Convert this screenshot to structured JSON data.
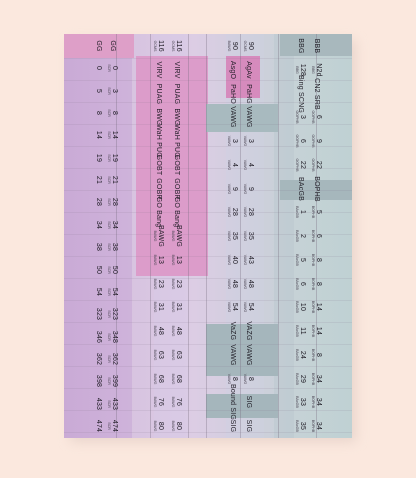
{
  "columns": [
    {
      "id": "c1",
      "cells": [
        {
          "v": "GG",
          "s": ""
        },
        {
          "v": "0",
          "s": ""
        },
        {
          "v": "5",
          "s": ""
        },
        {
          "v": "8",
          "s": ""
        },
        {
          "v": "14",
          "s": ""
        },
        {
          "v": "19",
          "s": ""
        },
        {
          "v": "21",
          "s": ""
        },
        {
          "v": "28",
          "s": ""
        },
        {
          "v": "34",
          "s": ""
        },
        {
          "v": "38",
          "s": ""
        },
        {
          "v": "50",
          "s": ""
        },
        {
          "v": "54",
          "s": ""
        },
        {
          "v": "323",
          "s": ""
        },
        {
          "v": "346",
          "s": ""
        },
        {
          "v": "362",
          "s": ""
        },
        {
          "v": "398",
          "s": ""
        },
        {
          "v": "433",
          "s": ""
        },
        {
          "v": "474",
          "s": ""
        }
      ]
    },
    {
      "id": "c2",
      "cells": [
        {
          "v": "GG",
          "s": ""
        },
        {
          "v": "0",
          "s": "SCR"
        },
        {
          "v": "3",
          "s": "SCR"
        },
        {
          "v": "8",
          "s": "SCR"
        },
        {
          "v": "14",
          "s": "SCR"
        },
        {
          "v": "19",
          "s": "SCR"
        },
        {
          "v": "21",
          "s": "SCR"
        },
        {
          "v": "28",
          "s": "SCR"
        },
        {
          "v": "34",
          "s": "SCR"
        },
        {
          "v": "38",
          "s": "SCR"
        },
        {
          "v": "50",
          "s": "SCR"
        },
        {
          "v": "54",
          "s": "SCR"
        },
        {
          "v": "323",
          "s": "SCR"
        },
        {
          "v": "348",
          "s": "SCR"
        },
        {
          "v": "362",
          "s": "SCR"
        },
        {
          "v": "399",
          "s": "SCR"
        },
        {
          "v": "433",
          "s": "SCR"
        },
        {
          "v": "474",
          "s": "SCR"
        }
      ]
    },
    {
      "id": "c3",
      "cells": [
        {
          "v": "116",
          "s": "GCMS"
        },
        {
          "v": "VIRV",
          "s": ""
        },
        {
          "v": "PUAG",
          "s": ""
        },
        {
          "v": "BWG",
          "s": ""
        },
        {
          "v": "WaH PUG",
          "s": ""
        },
        {
          "v": "GOBT",
          "s": ""
        },
        {
          "v": "GOBR",
          "s": ""
        },
        {
          "v": "GO Bang",
          "s": ""
        },
        {
          "v": "BAWG",
          "s": "BAWG"
        },
        {
          "v": "13",
          "s": "BAWG"
        },
        {
          "v": "23",
          "s": "BAWG"
        },
        {
          "v": "31",
          "s": "BAWG"
        },
        {
          "v": "48",
          "s": "BAWG"
        },
        {
          "v": "63",
          "s": "BAWG"
        },
        {
          "v": "68",
          "s": "BAWG"
        },
        {
          "v": "76",
          "s": "BAWG"
        },
        {
          "v": "80",
          "s": "BAWG"
        }
      ]
    },
    {
      "id": "c4",
      "cells": [
        {
          "v": "116",
          "s": "GCMS"
        },
        {
          "v": "VIRV",
          "s": ""
        },
        {
          "v": "PUAG",
          "s": ""
        },
        {
          "v": "BWG",
          "s": ""
        },
        {
          "v": "WaH PUG",
          "s": ""
        },
        {
          "v": "GOBT",
          "s": ""
        },
        {
          "v": "GOBR",
          "s": ""
        },
        {
          "v": "GO Bang",
          "s": ""
        },
        {
          "v": "BAWG",
          "s": "BAWG"
        },
        {
          "v": "13",
          "s": "BAWG"
        },
        {
          "v": "23",
          "s": "BAWG"
        },
        {
          "v": "31",
          "s": "BAWG"
        },
        {
          "v": "48",
          "s": "BAWG"
        },
        {
          "v": "63",
          "s": "BAWG"
        },
        {
          "v": "68",
          "s": "BAWG"
        },
        {
          "v": "76",
          "s": "BAWG"
        },
        {
          "v": "80",
          "s": "BAWG"
        }
      ]
    },
    {
      "id": "c5",
      "cells": [
        {
          "v": "90",
          "s": "BAWG"
        },
        {
          "v": "AsgO",
          "s": ""
        },
        {
          "v": "PaHO",
          "s": ""
        },
        {
          "v": "VAWG",
          "s": ""
        },
        {
          "v": "3",
          "s": "VAWG"
        },
        {
          "v": "4",
          "s": "VAWG"
        },
        {
          "v": "9",
          "s": "VAWG"
        },
        {
          "v": "28",
          "s": "VAWG"
        },
        {
          "v": "35",
          "s": "VAWG"
        },
        {
          "v": "40",
          "s": "VAWG"
        },
        {
          "v": "48",
          "s": "VAWG"
        },
        {
          "v": "54",
          "s": "VAWG"
        },
        {
          "v": "VaZG",
          "s": ""
        },
        {
          "v": "VAWG",
          "s": ""
        },
        {
          "v": "8",
          "s": "VAWG"
        },
        {
          "v": "Bound SIG",
          "s": ""
        },
        {
          "v": "SIG",
          "s": ""
        }
      ]
    },
    {
      "id": "c6",
      "cells": [
        {
          "v": "90",
          "s": "GCMS"
        },
        {
          "v": "AgAv",
          "s": ""
        },
        {
          "v": "PaHG",
          "s": ""
        },
        {
          "v": "VAWG",
          "s": ""
        },
        {
          "v": "3",
          "s": "VAWG"
        },
        {
          "v": "4",
          "s": "VAWG"
        },
        {
          "v": "9",
          "s": "VAWG"
        },
        {
          "v": "28",
          "s": "VAWG"
        },
        {
          "v": "35",
          "s": "VAWG"
        },
        {
          "v": "43",
          "s": "VAWG"
        },
        {
          "v": "48",
          "s": "VAWG"
        },
        {
          "v": "54",
          "s": "VAWG"
        },
        {
          "v": "VAZG",
          "s": ""
        },
        {
          "v": "VAWG",
          "s": ""
        },
        {
          "v": "8",
          "s": "VAWG"
        },
        {
          "v": "SIG",
          "s": ""
        },
        {
          "v": "SIG",
          "s": ""
        }
      ]
    },
    {
      "id": "c7",
      "cells": [
        {
          "v": "BBG",
          "s": ""
        },
        {
          "v": "128",
          "s": "BBG"
        },
        {
          "v": "Bing SCNG",
          "s": ""
        },
        {
          "v": "3",
          "s": "OOPHB"
        },
        {
          "v": "6",
          "s": "OOPHB"
        },
        {
          "v": "22",
          "s": "OOPHB"
        },
        {
          "v": "BAcGB",
          "s": ""
        },
        {
          "v": "1",
          "s": "BAcGB"
        },
        {
          "v": "2",
          "s": "BAcGB"
        },
        {
          "v": "5",
          "s": "BAcGB"
        },
        {
          "v": "6",
          "s": "BAcGB"
        },
        {
          "v": "10",
          "s": "BAcGB"
        },
        {
          "v": "11",
          "s": "BAcGB"
        },
        {
          "v": "24",
          "s": "BAcGB"
        },
        {
          "v": "29",
          "s": "BAcGB"
        },
        {
          "v": "33",
          "s": "BAcGB"
        },
        {
          "v": "35",
          "s": "BAcGB"
        }
      ]
    },
    {
      "id": "c8",
      "cells": [
        {
          "v": "BBB",
          "s": ""
        },
        {
          "v": "N2d",
          "s": "BBG"
        },
        {
          "v": "CN2 SRB",
          "s": ""
        },
        {
          "v": "6",
          "s": "OOPHB"
        },
        {
          "v": "9",
          "s": "OOPHB"
        },
        {
          "v": "22",
          "s": "OOPHB"
        },
        {
          "v": "BOPHB",
          "s": ""
        },
        {
          "v": "5",
          "s": "BOPHB"
        },
        {
          "v": "6",
          "s": "BOPHB"
        },
        {
          "v": "8",
          "s": "BOPHB"
        },
        {
          "v": "8",
          "s": "BOPHB"
        },
        {
          "v": "14",
          "s": "BOPHB"
        },
        {
          "v": "14",
          "s": "BOPHB"
        },
        {
          "v": "8",
          "s": "BOPHB"
        },
        {
          "v": "34",
          "s": "BOPHB"
        },
        {
          "v": "34",
          "s": "BOPHB"
        },
        {
          "v": "34",
          "s": "BOPHB"
        }
      ]
    }
  ]
}
